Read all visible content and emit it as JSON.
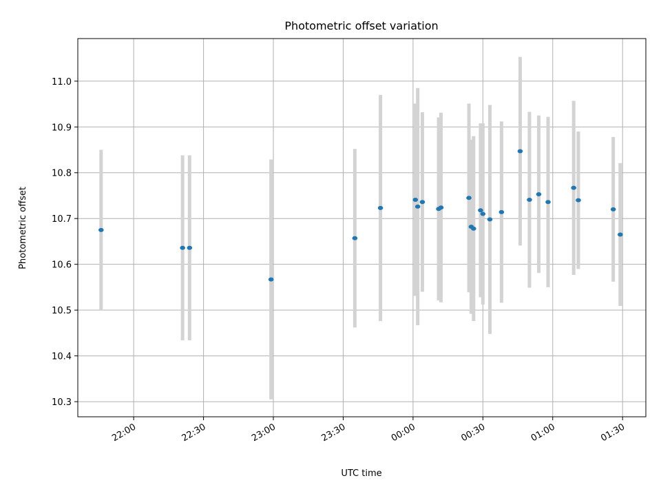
{
  "chart_data": {
    "type": "scatter",
    "title": "Photometric offset variation",
    "xlabel": "UTC time",
    "ylabel": "Photometric offset",
    "x_unit": "UTC time (HH:MM); values after 00:00 are on the following day",
    "xlim": [
      "21:36",
      "01:40"
    ],
    "ylim": [
      10.267,
      11.093
    ],
    "grid": true,
    "x_ticks": [
      "22:00",
      "22:30",
      "23:00",
      "23:30",
      "00:00",
      "00:30",
      "01:00",
      "01:30"
    ],
    "y_ticks": [
      10.3,
      10.4,
      10.5,
      10.6,
      10.7,
      10.8,
      10.9,
      11.0
    ],
    "y_tick_labels": [
      "10.3",
      "10.4",
      "10.5",
      "10.6",
      "10.7",
      "10.8",
      "10.9",
      "11.0"
    ],
    "colors": {
      "marker": "#1f77b4",
      "errorbar": "#d3d3d3",
      "grid": "#b0b0b0"
    },
    "points": [
      {
        "time": "21:46",
        "y": 10.675,
        "err": 0.175
      },
      {
        "time": "22:21",
        "y": 10.636,
        "err": 0.202
      },
      {
        "time": "22:24",
        "y": 10.636,
        "err": 0.202
      },
      {
        "time": "22:59",
        "y": 10.567,
        "err": 0.262
      },
      {
        "time": "23:35",
        "y": 10.657,
        "err": 0.195
      },
      {
        "time": "23:46",
        "y": 10.723,
        "err": 0.247
      },
      {
        "time": "00:01",
        "y": 10.741,
        "err": 0.21
      },
      {
        "time": "00:02",
        "y": 10.726,
        "err": 0.259
      },
      {
        "time": "00:04",
        "y": 10.736,
        "err": 0.196
      },
      {
        "time": "00:11",
        "y": 10.721,
        "err": 0.2
      },
      {
        "time": "00:12",
        "y": 10.724,
        "err": 0.207
      },
      {
        "time": "00:24",
        "y": 10.745,
        "err": 0.206
      },
      {
        "time": "00:25",
        "y": 10.682,
        "err": 0.19
      },
      {
        "time": "00:26",
        "y": 10.678,
        "err": 0.202
      },
      {
        "time": "00:29",
        "y": 10.718,
        "err": 0.19
      },
      {
        "time": "00:30",
        "y": 10.71,
        "err": 0.198
      },
      {
        "time": "00:33",
        "y": 10.698,
        "err": 0.25
      },
      {
        "time": "00:38",
        "y": 10.714,
        "err": 0.198
      },
      {
        "time": "00:46",
        "y": 10.847,
        "err": 0.206
      },
      {
        "time": "00:50",
        "y": 10.741,
        "err": 0.192
      },
      {
        "time": "00:54",
        "y": 10.753,
        "err": 0.172
      },
      {
        "time": "00:58",
        "y": 10.736,
        "err": 0.186
      },
      {
        "time": "01:09",
        "y": 10.767,
        "err": 0.19
      },
      {
        "time": "01:11",
        "y": 10.74,
        "err": 0.15
      },
      {
        "time": "01:26",
        "y": 10.72,
        "err": 0.158
      },
      {
        "time": "01:29",
        "y": 10.665,
        "err": 0.156
      }
    ]
  }
}
